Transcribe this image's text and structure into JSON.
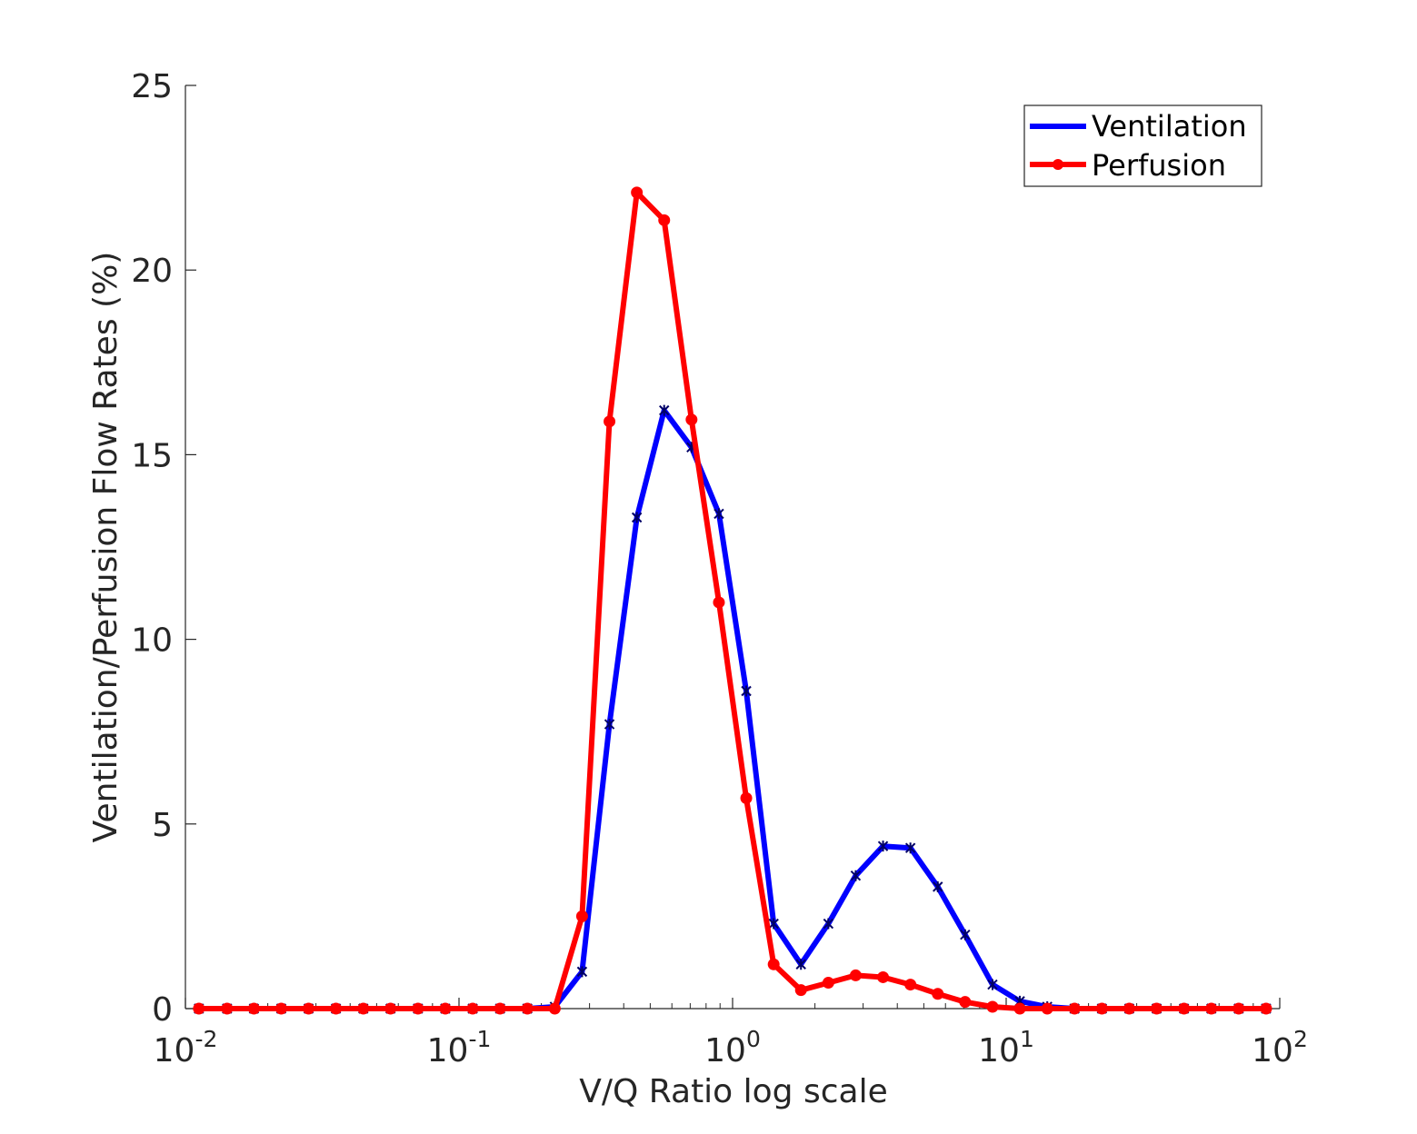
{
  "chart_data": {
    "type": "line",
    "xlabel": "V/Q Ratio log scale",
    "ylabel": "Ventilation/Perfusion Flow Rates (%)",
    "xscale": "log",
    "xlim": [
      0.01,
      100
    ],
    "ylim": [
      0,
      25
    ],
    "yticks": [
      0,
      5,
      10,
      15,
      20,
      25
    ],
    "xticks": [
      {
        "value": 0.01,
        "base": "10",
        "exp": "-2"
      },
      {
        "value": 0.1,
        "base": "10",
        "exp": "-1"
      },
      {
        "value": 1,
        "base": "10",
        "exp": "0"
      },
      {
        "value": 10,
        "base": "10",
        "exp": "1"
      },
      {
        "value": 100,
        "base": "10",
        "exp": "2"
      }
    ],
    "grid": false,
    "legend_position": "top-right",
    "x": [
      0.0112,
      0.0142,
      0.0178,
      0.0224,
      0.0282,
      0.0355,
      0.0447,
      0.0562,
      0.0708,
      0.0891,
      0.1122,
      0.1413,
      0.1778,
      0.2239,
      0.2818,
      0.3548,
      0.4467,
      0.5623,
      0.7079,
      0.8913,
      1.122,
      1.413,
      1.778,
      2.239,
      2.818,
      3.548,
      4.467,
      5.623,
      7.079,
      8.913,
      11.22,
      14.13,
      17.78,
      22.39,
      28.18,
      35.48,
      44.67,
      56.23,
      70.79,
      89.13
    ],
    "series": [
      {
        "name": "Ventilation",
        "color": "#0000ff",
        "marker": "star",
        "values": [
          0,
          0,
          0,
          0,
          0,
          0,
          0,
          0,
          0,
          0,
          0,
          0,
          0,
          0.05,
          1.0,
          7.7,
          13.3,
          16.2,
          15.2,
          13.4,
          8.6,
          2.3,
          1.2,
          2.3,
          3.6,
          4.4,
          4.35,
          3.3,
          2.0,
          0.65,
          0.2,
          0.05,
          0,
          0,
          0,
          0,
          0,
          0,
          0,
          0
        ]
      },
      {
        "name": "Perfusion",
        "color": "#ff0000",
        "marker": "plus",
        "values": [
          0,
          0,
          0,
          0,
          0,
          0,
          0,
          0,
          0,
          0,
          0,
          0,
          0,
          0,
          2.5,
          15.9,
          22.1,
          21.35,
          15.95,
          11.0,
          5.7,
          1.2,
          0.5,
          0.7,
          0.9,
          0.85,
          0.65,
          0.4,
          0.18,
          0.05,
          0,
          0,
          0,
          0,
          0,
          0,
          0,
          0,
          0,
          0
        ]
      }
    ]
  }
}
